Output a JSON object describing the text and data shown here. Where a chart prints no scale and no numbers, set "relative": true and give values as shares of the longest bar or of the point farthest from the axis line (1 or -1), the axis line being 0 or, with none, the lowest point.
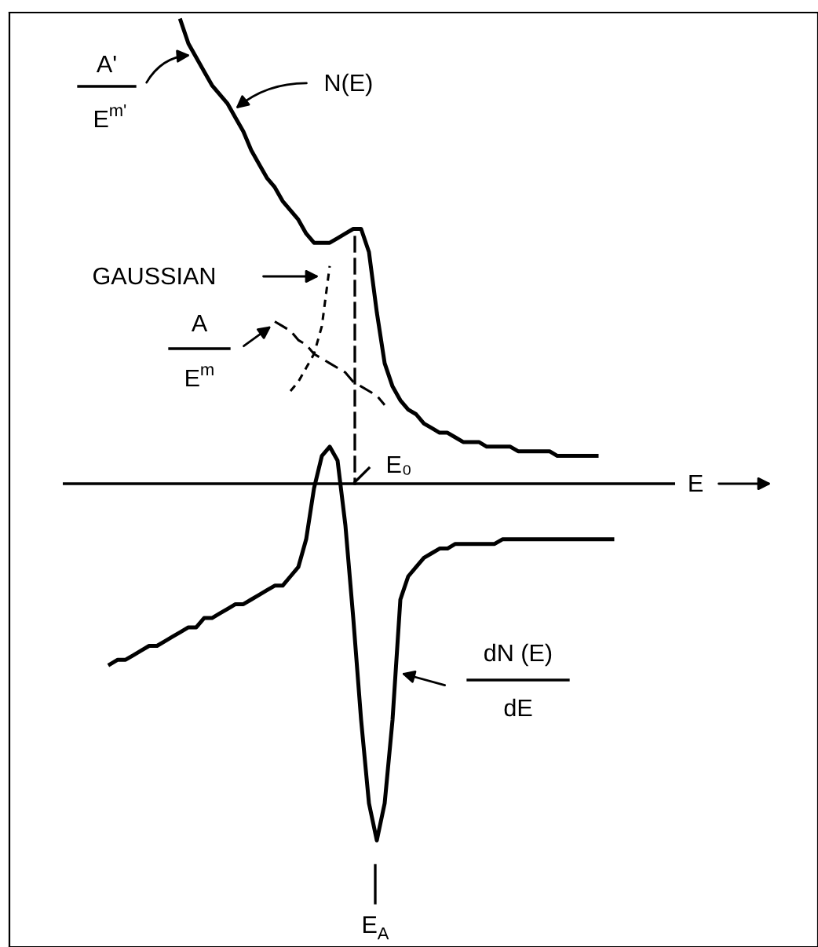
{
  "chart_data": {
    "type": "line",
    "relative": true,
    "categories": [
      null,
      null,
      null,
      null,
      null,
      null,
      null,
      null,
      null,
      null,
      null,
      null,
      null,
      null,
      null,
      null,
      null,
      null,
      null,
      null,
      null,
      null,
      null,
      null,
      null,
      null,
      null,
      null,
      null,
      null,
      null,
      null,
      null,
      null,
      null,
      null,
      null,
      null,
      null,
      null,
      null,
      null,
      null,
      null,
      null,
      null,
      null,
      null,
      null,
      null,
      null,
      null,
      null,
      null,
      null,
      null,
      null,
      null,
      null,
      null,
      null,
      null,
      null,
      null,
      null
    ],
    "series": [
      {
        "color": "#000000",
        "line_style": "solid",
        "values": [
          null,
          null,
          null,
          null,
          null,
          null,
          null,
          null,
          null,
          1.0,
          0.95,
          0.92,
          0.89,
          0.86,
          0.84,
          0.82,
          0.79,
          0.76,
          0.72,
          0.69,
          0.66,
          0.64,
          0.61,
          0.59,
          0.57,
          0.54,
          0.52,
          0.52,
          0.52,
          0.53,
          0.54,
          0.55,
          0.55,
          0.5,
          0.37,
          0.26,
          0.21,
          0.18,
          0.16,
          0.15,
          0.13,
          0.12,
          0.11,
          0.11,
          0.1,
          0.09,
          0.09,
          0.09,
          0.08,
          0.08,
          0.08,
          0.08,
          0.07,
          0.07,
          0.07,
          0.07,
          0.07,
          0.06,
          0.06,
          0.06,
          0.06,
          0.06,
          0.06,
          null,
          null
        ]
      },
      {
        "color": "#000000",
        "line_style": "dotted",
        "values": [
          null,
          null,
          null,
          null,
          null,
          null,
          null,
          null,
          null,
          null,
          null,
          null,
          null,
          null,
          null,
          null,
          null,
          null,
          null,
          null,
          null,
          null,
          null,
          0.2,
          0.22,
          0.25,
          0.28,
          0.34,
          0.47,
          null,
          null,
          null,
          null,
          null,
          null,
          null,
          null,
          null,
          null,
          null,
          null,
          null,
          null,
          null,
          null,
          null,
          null,
          null,
          null,
          null,
          null,
          null,
          null,
          null,
          null,
          null,
          null,
          null,
          null,
          null,
          null,
          null,
          null,
          null,
          null
        ]
      },
      {
        "color": "#000000",
        "line_style": "dashed",
        "values": [
          null,
          null,
          null,
          null,
          null,
          null,
          null,
          null,
          null,
          null,
          null,
          null,
          null,
          null,
          null,
          null,
          null,
          null,
          null,
          null,
          null,
          0.35,
          0.34,
          0.33,
          0.31,
          0.3,
          0.28,
          0.27,
          0.26,
          0.25,
          0.24,
          0.22,
          0.21,
          0.2,
          0.19,
          0.17,
          null,
          null,
          null,
          null,
          null,
          null,
          null,
          null,
          null,
          null,
          null,
          null,
          null,
          null,
          null,
          null,
          null,
          null,
          null,
          null,
          null,
          null,
          null,
          null,
          null,
          null,
          null,
          null,
          null
        ]
      },
      {
        "color": "#000000",
        "line_style": "solid",
        "values": [
          -0.39,
          -0.38,
          -0.38,
          -0.37,
          -0.36,
          -0.35,
          -0.35,
          -0.34,
          -0.33,
          -0.32,
          -0.31,
          -0.31,
          -0.29,
          -0.29,
          -0.28,
          -0.27,
          -0.26,
          -0.26,
          -0.25,
          -0.24,
          -0.23,
          -0.22,
          -0.22,
          -0.2,
          -0.18,
          -0.12,
          -0.01,
          0.06,
          0.08,
          0.05,
          -0.09,
          -0.29,
          -0.51,
          -0.69,
          -0.77,
          -0.69,
          -0.51,
          -0.25,
          -0.2,
          -0.18,
          -0.16,
          -0.15,
          -0.14,
          -0.14,
          -0.13,
          -0.13,
          -0.13,
          -0.13,
          -0.13,
          -0.13,
          -0.12,
          -0.12,
          -0.12,
          -0.12,
          -0.12,
          -0.12,
          -0.12,
          -0.12,
          -0.12,
          -0.12,
          -0.12,
          -0.12,
          -0.12,
          -0.12,
          -0.12
        ]
      }
    ],
    "ref_lines": [
      {
        "axis": "y",
        "value": 0,
        "color": "#000000",
        "line_style": "solid"
      }
    ],
    "annotations": [
      "A'",
      "E$^{m'}$",
      "N(E)",
      "GAUSSIAN",
      "A",
      "E$^{m}$",
      "dN (E)",
      "dE",
      "E₀",
      "E$_{A}$",
      "E"
    ]
  }
}
